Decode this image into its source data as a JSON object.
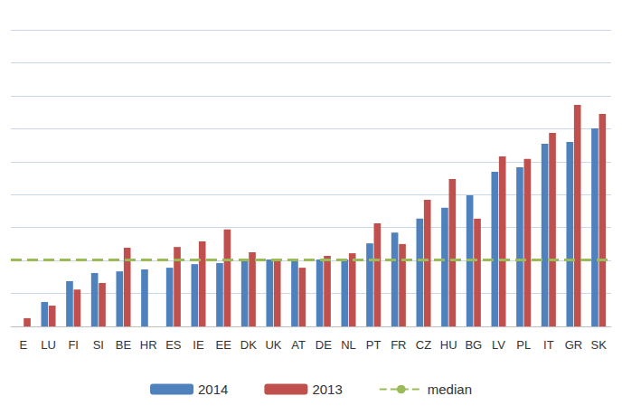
{
  "chart_data": {
    "type": "bar",
    "categories": [
      "E",
      "LU",
      "FI",
      "SI",
      "BE",
      "HR",
      "ES",
      "IE",
      "EE",
      "DK",
      "UK",
      "AT",
      "DE",
      "NL",
      "PT",
      "FR",
      "CZ",
      "HU",
      "BG",
      "LV",
      "PL",
      "IT",
      "GR",
      "SK"
    ],
    "series": [
      {
        "name": "2014",
        "color": "#4f81bd",
        "values": [
          null,
          0.74,
          1.37,
          1.62,
          1.67,
          1.73,
          1.78,
          1.89,
          1.92,
          1.98,
          2.03,
          2.0,
          2.03,
          2.03,
          2.52,
          2.85,
          3.27,
          3.6,
          3.98,
          4.69,
          4.83,
          5.54,
          5.6,
          6.01
        ]
      },
      {
        "name": "2013",
        "color": "#c0504d",
        "values": [
          0.25,
          0.63,
          1.12,
          1.32,
          2.39,
          null,
          2.41,
          2.58,
          2.94,
          2.25,
          2.0,
          1.78,
          2.14,
          2.22,
          3.13,
          2.5,
          3.84,
          4.47,
          3.27,
          5.16,
          5.08,
          5.87,
          6.72,
          6.45
        ]
      }
    ],
    "median": {
      "name": "median",
      "value": 2.03,
      "color": "#9bbb59",
      "line_style": "dashed"
    },
    "ylim": [
      0,
      9
    ],
    "yticks": [
      0,
      1,
      2,
      3,
      4,
      5,
      6,
      7,
      8,
      9
    ],
    "grid": true,
    "legend": "bottom",
    "tick_labels": "x"
  }
}
